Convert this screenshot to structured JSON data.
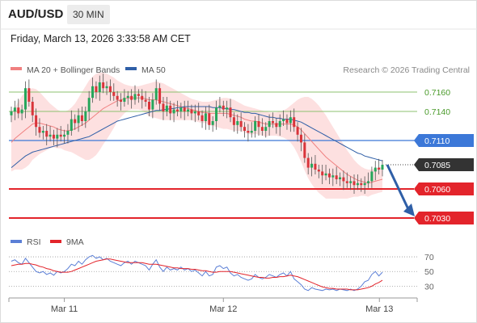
{
  "header": {
    "symbol": "AUD/USD",
    "timeframe": "30 MIN",
    "timestamp": "Friday, March 13, 2026 3:33:58 AM CET"
  },
  "legend": {
    "items": [
      {
        "label": "MA 20 + Bollinger Bands",
        "color": "#f08080"
      },
      {
        "label": "MA 50",
        "color": "#2f5fa7"
      }
    ],
    "credit": "Research © 2026 Trading Central"
  },
  "colors": {
    "up_candle": "#26a65b",
    "down_candle": "#d9343a",
    "bollinger_fill": "#fde0e0",
    "ma20": "#f08080",
    "ma50": "#2f5fa7",
    "resistance": "#8dc26f",
    "pivot": "#3c78d8",
    "support": "#e3242b",
    "last_price": "#333333",
    "arrow": "#2f5fa7",
    "rsi": "#5b7fd6",
    "rsi_ma": "#e3242b"
  },
  "chart_data": [
    {
      "type": "candlestick",
      "title": "AUD/USD 30 MIN",
      "x_ticks": [
        "Mar 11",
        "Mar 12",
        "Mar 13"
      ],
      "ylim": [
        0.7015,
        0.7175
      ],
      "levels": [
        {
          "value": 0.716,
          "label": "0.7160",
          "kind": "resistance"
        },
        {
          "value": 0.714,
          "label": "0.7140",
          "kind": "resistance"
        },
        {
          "value": 0.711,
          "label": "0.7110",
          "kind": "pivot"
        },
        {
          "value": 0.7085,
          "label": "0.7085",
          "kind": "last"
        },
        {
          "value": 0.706,
          "label": "0.7060",
          "kind": "support"
        },
        {
          "value": 0.703,
          "label": "0.7030",
          "kind": "support"
        }
      ],
      "close": [
        0.714,
        0.7144,
        0.7138,
        0.7142,
        0.7164,
        0.715,
        0.7136,
        0.7124,
        0.7118,
        0.712,
        0.7114,
        0.7116,
        0.7112,
        0.7116,
        0.7114,
        0.7116,
        0.712,
        0.7132,
        0.7128,
        0.7136,
        0.713,
        0.714,
        0.7154,
        0.7166,
        0.716,
        0.717,
        0.7164,
        0.7166,
        0.716,
        0.7156,
        0.7152,
        0.715,
        0.7154,
        0.7156,
        0.7152,
        0.7158,
        0.7156,
        0.7152,
        0.715,
        0.7142,
        0.7152,
        0.7164,
        0.7148,
        0.714,
        0.7146,
        0.7138,
        0.7142,
        0.714,
        0.7144,
        0.714,
        0.7142,
        0.7138,
        0.714,
        0.7136,
        0.713,
        0.7138,
        0.7126,
        0.713,
        0.7144,
        0.7146,
        0.7142,
        0.7144,
        0.7134,
        0.7126,
        0.713,
        0.7124,
        0.712,
        0.7118,
        0.712,
        0.713,
        0.7124,
        0.712,
        0.7124,
        0.713,
        0.7128,
        0.7124,
        0.713,
        0.7132,
        0.7128,
        0.7134,
        0.7124,
        0.7116,
        0.7108,
        0.7092,
        0.7082,
        0.7086,
        0.708,
        0.7078,
        0.7074,
        0.7076,
        0.7072,
        0.7074,
        0.707,
        0.7072,
        0.7068,
        0.7066,
        0.7068,
        0.7064,
        0.7066,
        0.7064,
        0.7066,
        0.7068,
        0.7078,
        0.7082,
        0.708,
        0.7085
      ],
      "ma20": [
        0.7108,
        0.7112,
        0.7115,
        0.7118,
        0.7121,
        0.7124,
        0.7127,
        0.7128,
        0.7128,
        0.7127,
        0.7126,
        0.7125,
        0.7124,
        0.7122,
        0.7121,
        0.712,
        0.712,
        0.7121,
        0.7122,
        0.7124,
        0.7126,
        0.7128,
        0.7131,
        0.7134,
        0.7137,
        0.714,
        0.7143,
        0.7145,
        0.7147,
        0.7149,
        0.7151,
        0.7152,
        0.7153,
        0.7154,
        0.7154,
        0.7154,
        0.7154,
        0.7154,
        0.7153,
        0.7152,
        0.7152,
        0.7152,
        0.7151,
        0.715,
        0.7149,
        0.7148,
        0.7147,
        0.7146,
        0.7145,
        0.7144,
        0.7143,
        0.7142,
        0.7141,
        0.714,
        0.7139,
        0.7139,
        0.7138,
        0.7138,
        0.7138,
        0.7138,
        0.7138,
        0.7138,
        0.7137,
        0.7136,
        0.7135,
        0.7134,
        0.7132,
        0.7131,
        0.713,
        0.713,
        0.7129,
        0.7128,
        0.7127,
        0.7127,
        0.7127,
        0.7127,
        0.7127,
        0.7127,
        0.7127,
        0.7127,
        0.7126,
        0.7124,
        0.7121,
        0.7117,
        0.7113,
        0.7109,
        0.7105,
        0.7101,
        0.7097,
        0.7093,
        0.709,
        0.7087,
        0.7084,
        0.7081,
        0.7078,
        0.7075,
        0.7073,
        0.7071,
        0.7069,
        0.7068,
        0.7067,
        0.7066,
        0.7067,
        0.7068,
        0.7069,
        0.707
      ],
      "upper_band": [
        0.7138,
        0.7144,
        0.715,
        0.7156,
        0.716,
        0.7163,
        0.7164,
        0.7163,
        0.716,
        0.7156,
        0.7152,
        0.7148,
        0.7145,
        0.7142,
        0.714,
        0.714,
        0.7141,
        0.7144,
        0.7148,
        0.7154,
        0.716,
        0.7166,
        0.7172,
        0.7176,
        0.7179,
        0.718,
        0.718,
        0.7179,
        0.7177,
        0.7175,
        0.7172,
        0.717,
        0.7168,
        0.7167,
        0.7166,
        0.7166,
        0.7166,
        0.7167,
        0.7168,
        0.7169,
        0.717,
        0.7171,
        0.717,
        0.7169,
        0.7167,
        0.7165,
        0.7163,
        0.7161,
        0.7159,
        0.7157,
        0.7155,
        0.7153,
        0.7152,
        0.7151,
        0.715,
        0.715,
        0.715,
        0.7151,
        0.7152,
        0.7153,
        0.7154,
        0.7154,
        0.7153,
        0.7152,
        0.715,
        0.7148,
        0.7146,
        0.7145,
        0.7144,
        0.7143,
        0.7142,
        0.7141,
        0.714,
        0.7139,
        0.7139,
        0.7139,
        0.714,
        0.7141,
        0.7143,
        0.7146,
        0.7149,
        0.7152,
        0.7154,
        0.7155,
        0.7155,
        0.7153,
        0.715,
        0.7146,
        0.7141,
        0.7136,
        0.713,
        0.7124,
        0.7118,
        0.7112,
        0.7106,
        0.71,
        0.7095,
        0.709,
        0.7086,
        0.7083,
        0.7081,
        0.708,
        0.708,
        0.7081,
        0.7082,
        0.7083
      ],
      "lower_band": [
        0.7078,
        0.708,
        0.708,
        0.708,
        0.7082,
        0.7085,
        0.709,
        0.7093,
        0.7096,
        0.7098,
        0.71,
        0.7102,
        0.7103,
        0.7102,
        0.7102,
        0.71,
        0.7099,
        0.7098,
        0.7096,
        0.7094,
        0.7092,
        0.709,
        0.709,
        0.7092,
        0.7095,
        0.71,
        0.7106,
        0.7111,
        0.7117,
        0.7123,
        0.713,
        0.7134,
        0.7138,
        0.7141,
        0.7142,
        0.7142,
        0.7142,
        0.7141,
        0.7138,
        0.7135,
        0.7134,
        0.7133,
        0.7132,
        0.7131,
        0.7131,
        0.7131,
        0.7131,
        0.7131,
        0.7131,
        0.7131,
        0.7131,
        0.7131,
        0.713,
        0.7129,
        0.7128,
        0.7128,
        0.7126,
        0.7125,
        0.7124,
        0.7123,
        0.7122,
        0.7122,
        0.7121,
        0.712,
        0.712,
        0.712,
        0.7118,
        0.7117,
        0.7116,
        0.7117,
        0.7116,
        0.7115,
        0.7114,
        0.7115,
        0.7115,
        0.7115,
        0.7114,
        0.7113,
        0.7111,
        0.7108,
        0.7103,
        0.7096,
        0.7088,
        0.7079,
        0.7071,
        0.7065,
        0.706,
        0.7056,
        0.7053,
        0.705,
        0.705,
        0.705,
        0.705,
        0.705,
        0.705,
        0.705,
        0.7051,
        0.7052,
        0.7052,
        0.7053,
        0.7053,
        0.7052,
        0.7054,
        0.7055,
        0.7056,
        0.7057
      ],
      "ma50": [
        0.7082,
        0.7085,
        0.7088,
        0.7091,
        0.7094,
        0.7096,
        0.7098,
        0.7099,
        0.71,
        0.7101,
        0.7102,
        0.7103,
        0.7104,
        0.7105,
        0.7106,
        0.7107,
        0.7108,
        0.7109,
        0.711,
        0.7111,
        0.7112,
        0.7113,
        0.7114,
        0.7116,
        0.7118,
        0.712,
        0.7122,
        0.7124,
        0.7126,
        0.7128,
        0.713,
        0.7131,
        0.7132,
        0.7133,
        0.7134,
        0.7135,
        0.7136,
        0.7137,
        0.7138,
        0.7139,
        0.714,
        0.7141,
        0.7141,
        0.7142,
        0.7142,
        0.7143,
        0.7143,
        0.7144,
        0.7144,
        0.7145,
        0.7145,
        0.7145,
        0.7145,
        0.7145,
        0.7145,
        0.7145,
        0.7145,
        0.7144,
        0.7144,
        0.7144,
        0.7143,
        0.7143,
        0.7142,
        0.7142,
        0.7141,
        0.714,
        0.7139,
        0.7139,
        0.7138,
        0.7138,
        0.7137,
        0.7136,
        0.7135,
        0.7134,
        0.7134,
        0.7133,
        0.7133,
        0.7132,
        0.7132,
        0.7132,
        0.7131,
        0.713,
        0.7129,
        0.7127,
        0.7125,
        0.7123,
        0.7121,
        0.7119,
        0.7117,
        0.7115,
        0.7113,
        0.7111,
        0.7109,
        0.7107,
        0.7105,
        0.7103,
        0.7101,
        0.7099,
        0.7097,
        0.7096,
        0.7094,
        0.7093,
        0.7092,
        0.7091,
        0.709,
        0.7089
      ],
      "projection": {
        "from": 0.7085,
        "to": 0.703
      }
    },
    {
      "type": "line",
      "legend": [
        "RSI",
        "9MA"
      ],
      "y_ticks": [
        70,
        50,
        30
      ],
      "ylim": [
        15,
        80
      ],
      "rsi": [
        64,
        66,
        62,
        60,
        68,
        62,
        56,
        50,
        48,
        50,
        46,
        48,
        45,
        50,
        48,
        50,
        54,
        60,
        58,
        64,
        60,
        66,
        70,
        72,
        68,
        70,
        66,
        68,
        64,
        62,
        60,
        58,
        62,
        64,
        60,
        64,
        62,
        60,
        58,
        52,
        60,
        66,
        56,
        50,
        56,
        52,
        54,
        52,
        56,
        52,
        54,
        50,
        52,
        48,
        44,
        50,
        44,
        46,
        56,
        58,
        54,
        56,
        48,
        44,
        46,
        42,
        40,
        38,
        40,
        46,
        42,
        40,
        42,
        46,
        44,
        42,
        46,
        48,
        44,
        50,
        40,
        36,
        32,
        26,
        24,
        28,
        26,
        25,
        24,
        26,
        25,
        26,
        24,
        26,
        25,
        24,
        26,
        24,
        26,
        30,
        36,
        38,
        46,
        50,
        44,
        49
      ],
      "rsi_ma": [
        58,
        59,
        60,
        60,
        61,
        61,
        60,
        59,
        57,
        56,
        54,
        53,
        51,
        50,
        49,
        49,
        49,
        50,
        52,
        54,
        56,
        58,
        60,
        62,
        64,
        65,
        66,
        67,
        67,
        66,
        65,
        64,
        63,
        62,
        62,
        62,
        62,
        62,
        61,
        60,
        60,
        60,
        59,
        58,
        57,
        56,
        55,
        55,
        54,
        54,
        54,
        53,
        53,
        52,
        51,
        51,
        50,
        49,
        49,
        50,
        50,
        50,
        50,
        49,
        48,
        47,
        46,
        45,
        44,
        43,
        42,
        42,
        41,
        41,
        42,
        42,
        43,
        43,
        44,
        45,
        44,
        43,
        41,
        39,
        37,
        35,
        33,
        31,
        29,
        28,
        27,
        27,
        26,
        26,
        26,
        26,
        25,
        25,
        25,
        26,
        27,
        28,
        30,
        33,
        35,
        38
      ]
    }
  ]
}
